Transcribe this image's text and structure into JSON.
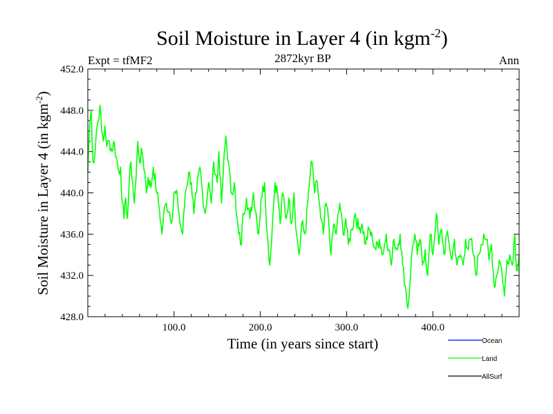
{
  "chart_data": {
    "type": "line",
    "title": "Soil Moisture in Layer 4 (in kgm",
    "title_sup": "-2",
    "title_close": ")",
    "subtitle": "2872kyr BP",
    "left_label": "Expt = tfMF2",
    "right_label": "Ann",
    "xlabel": "Time (in years since start)",
    "ylabel": "Soil Moisture in Layer 4 (in kgm",
    "ylabel_sup": "-2",
    "ylabel_close": ")",
    "xlim": [
      0,
      500
    ],
    "ylim": [
      428,
      452
    ],
    "xticks": [
      100,
      200,
      300,
      400
    ],
    "xtick_labels": [
      "100.0",
      "200.0",
      "300.0",
      "400.0"
    ],
    "yticks": [
      428,
      432,
      436,
      440,
      444,
      448,
      452
    ],
    "ytick_labels": [
      "428.0",
      "432.0",
      "436.0",
      "440.0",
      "444.0",
      "448.0",
      "452.0"
    ],
    "legend": [
      {
        "name": "Ocean",
        "color": "#0000ff"
      },
      {
        "name": "Land",
        "color": "#00ff00"
      },
      {
        "name": "AllSurf",
        "color": "#000000"
      }
    ],
    "series": [
      {
        "name": "Land",
        "color": "#00ff00",
        "anchors": [
          [
            0,
            442.0
          ],
          [
            2,
            446.5
          ],
          [
            4,
            448.0
          ],
          [
            6,
            443.0
          ],
          [
            8,
            443.5
          ],
          [
            10,
            446.0
          ],
          [
            12,
            447.0
          ],
          [
            14,
            448.5
          ],
          [
            16,
            446.0
          ],
          [
            18,
            445.0
          ],
          [
            20,
            446.5
          ],
          [
            22,
            444.5
          ],
          [
            25,
            445.0
          ],
          [
            28,
            444.0
          ],
          [
            30,
            445.0
          ],
          [
            33,
            443.5
          ],
          [
            36,
            442.0
          ],
          [
            38,
            442.5
          ],
          [
            40,
            439.0
          ],
          [
            42,
            437.5
          ],
          [
            44,
            439.5
          ],
          [
            46,
            437.5
          ],
          [
            48,
            441.0
          ],
          [
            50,
            443.0
          ],
          [
            52,
            441.0
          ],
          [
            54,
            439.0
          ],
          [
            56,
            441.5
          ],
          [
            58,
            445.0
          ],
          [
            60,
            443.0
          ],
          [
            63,
            444.0
          ],
          [
            66,
            442.0
          ],
          [
            68,
            440.0
          ],
          [
            70,
            441.5
          ],
          [
            73,
            440.5
          ],
          [
            76,
            442.5
          ],
          [
            80,
            440.0
          ],
          [
            83,
            438.5
          ],
          [
            86,
            436.0
          ],
          [
            88,
            438.0
          ],
          [
            91,
            439.0
          ],
          [
            95,
            438.0
          ],
          [
            98,
            437.5
          ],
          [
            100,
            440.0
          ],
          [
            104,
            439.5
          ],
          [
            107,
            437.0
          ],
          [
            110,
            436.0
          ],
          [
            113,
            440.0
          ],
          [
            117,
            442.0
          ],
          [
            120,
            441.0
          ],
          [
            123,
            438.0
          ],
          [
            126,
            440.0
          ],
          [
            130,
            442.5
          ],
          [
            133,
            440.0
          ],
          [
            136,
            438.0
          ],
          [
            140,
            441.0
          ],
          [
            143,
            439.0
          ],
          [
            146,
            443.0
          ],
          [
            150,
            441.0
          ],
          [
            152,
            444.0
          ],
          [
            155,
            439.0
          ],
          [
            157,
            442.0
          ],
          [
            160,
            445.5
          ],
          [
            163,
            443.0
          ],
          [
            166,
            440.0
          ],
          [
            170,
            441.0
          ],
          [
            172,
            438.0
          ],
          [
            175,
            436.0
          ],
          [
            178,
            435.0
          ],
          [
            180,
            438.0
          ],
          [
            184,
            439.5
          ],
          [
            188,
            437.5
          ],
          [
            192,
            440.0
          ],
          [
            195,
            438.0
          ],
          [
            198,
            436.0
          ],
          [
            201,
            439.5
          ],
          [
            205,
            441.0
          ],
          [
            208,
            436.0
          ],
          [
            211,
            433.0
          ],
          [
            214,
            437.0
          ],
          [
            217,
            441.0
          ],
          [
            220,
            440.0
          ],
          [
            223,
            437.0
          ],
          [
            226,
            440.0
          ],
          [
            230,
            437.5
          ],
          [
            233,
            439.5
          ],
          [
            236,
            437.0
          ],
          [
            239,
            440.0
          ],
          [
            242,
            436.0
          ],
          [
            245,
            434.0
          ],
          [
            248,
            437.0
          ],
          [
            252,
            436.0
          ],
          [
            255,
            439.0
          ],
          [
            258,
            442.0
          ],
          [
            260,
            443.0
          ],
          [
            263,
            440.0
          ],
          [
            266,
            441.0
          ],
          [
            270,
            437.5
          ],
          [
            273,
            436.0
          ],
          [
            276,
            439.0
          ],
          [
            279,
            437.5
          ],
          [
            282,
            434.0
          ],
          [
            285,
            437.0
          ],
          [
            288,
            436.0
          ],
          [
            292,
            439.0
          ],
          [
            296,
            436.0
          ],
          [
            299,
            437.5
          ],
          [
            302,
            435.0
          ],
          [
            306,
            436.5
          ],
          [
            310,
            438.0
          ],
          [
            314,
            436.5
          ],
          [
            318,
            437.0
          ],
          [
            322,
            435.0
          ],
          [
            326,
            436.5
          ],
          [
            330,
            435.5
          ],
          [
            334,
            434.5
          ],
          [
            338,
            435.5
          ],
          [
            342,
            434.0
          ],
          [
            346,
            436.0
          ],
          [
            349,
            434.5
          ],
          [
            352,
            433.0
          ],
          [
            355,
            435.5
          ],
          [
            358,
            434.5
          ],
          [
            362,
            436.0
          ],
          [
            365,
            433.0
          ],
          [
            368,
            431.0
          ],
          [
            371,
            428.8
          ],
          [
            374,
            432.0
          ],
          [
            376,
            434.5
          ],
          [
            379,
            436.0
          ],
          [
            382,
            434.0
          ],
          [
            385,
            435.5
          ],
          [
            388,
            433.0
          ],
          [
            391,
            434.5
          ],
          [
            394,
            432.0
          ],
          [
            397,
            436.0
          ],
          [
            400,
            434.0
          ],
          [
            404,
            438.0
          ],
          [
            407,
            435.0
          ],
          [
            410,
            436.5
          ],
          [
            413,
            434.0
          ],
          [
            416,
            436.0
          ],
          [
            419,
            435.0
          ],
          [
            422,
            433.5
          ],
          [
            425,
            435.5
          ],
          [
            428,
            433.0
          ],
          [
            432,
            434.0
          ],
          [
            435,
            433.0
          ],
          [
            438,
            435.5
          ],
          [
            441,
            434.5
          ],
          [
            444,
            435.5
          ],
          [
            447,
            434.0
          ],
          [
            450,
            432.0
          ],
          [
            453,
            434.0
          ],
          [
            456,
            435.0
          ],
          [
            459,
            436.0
          ],
          [
            462,
            435.5
          ],
          [
            465,
            433.5
          ],
          [
            468,
            435.0
          ],
          [
            471,
            431.0
          ],
          [
            474,
            432.0
          ],
          [
            477,
            433.5
          ],
          [
            480,
            432.5
          ],
          [
            483,
            430.0
          ],
          [
            486,
            433.5
          ],
          [
            489,
            434.0
          ],
          [
            492,
            433.0
          ],
          [
            495,
            436.0
          ],
          [
            497,
            432.5
          ],
          [
            500,
            434.0
          ]
        ]
      }
    ]
  }
}
